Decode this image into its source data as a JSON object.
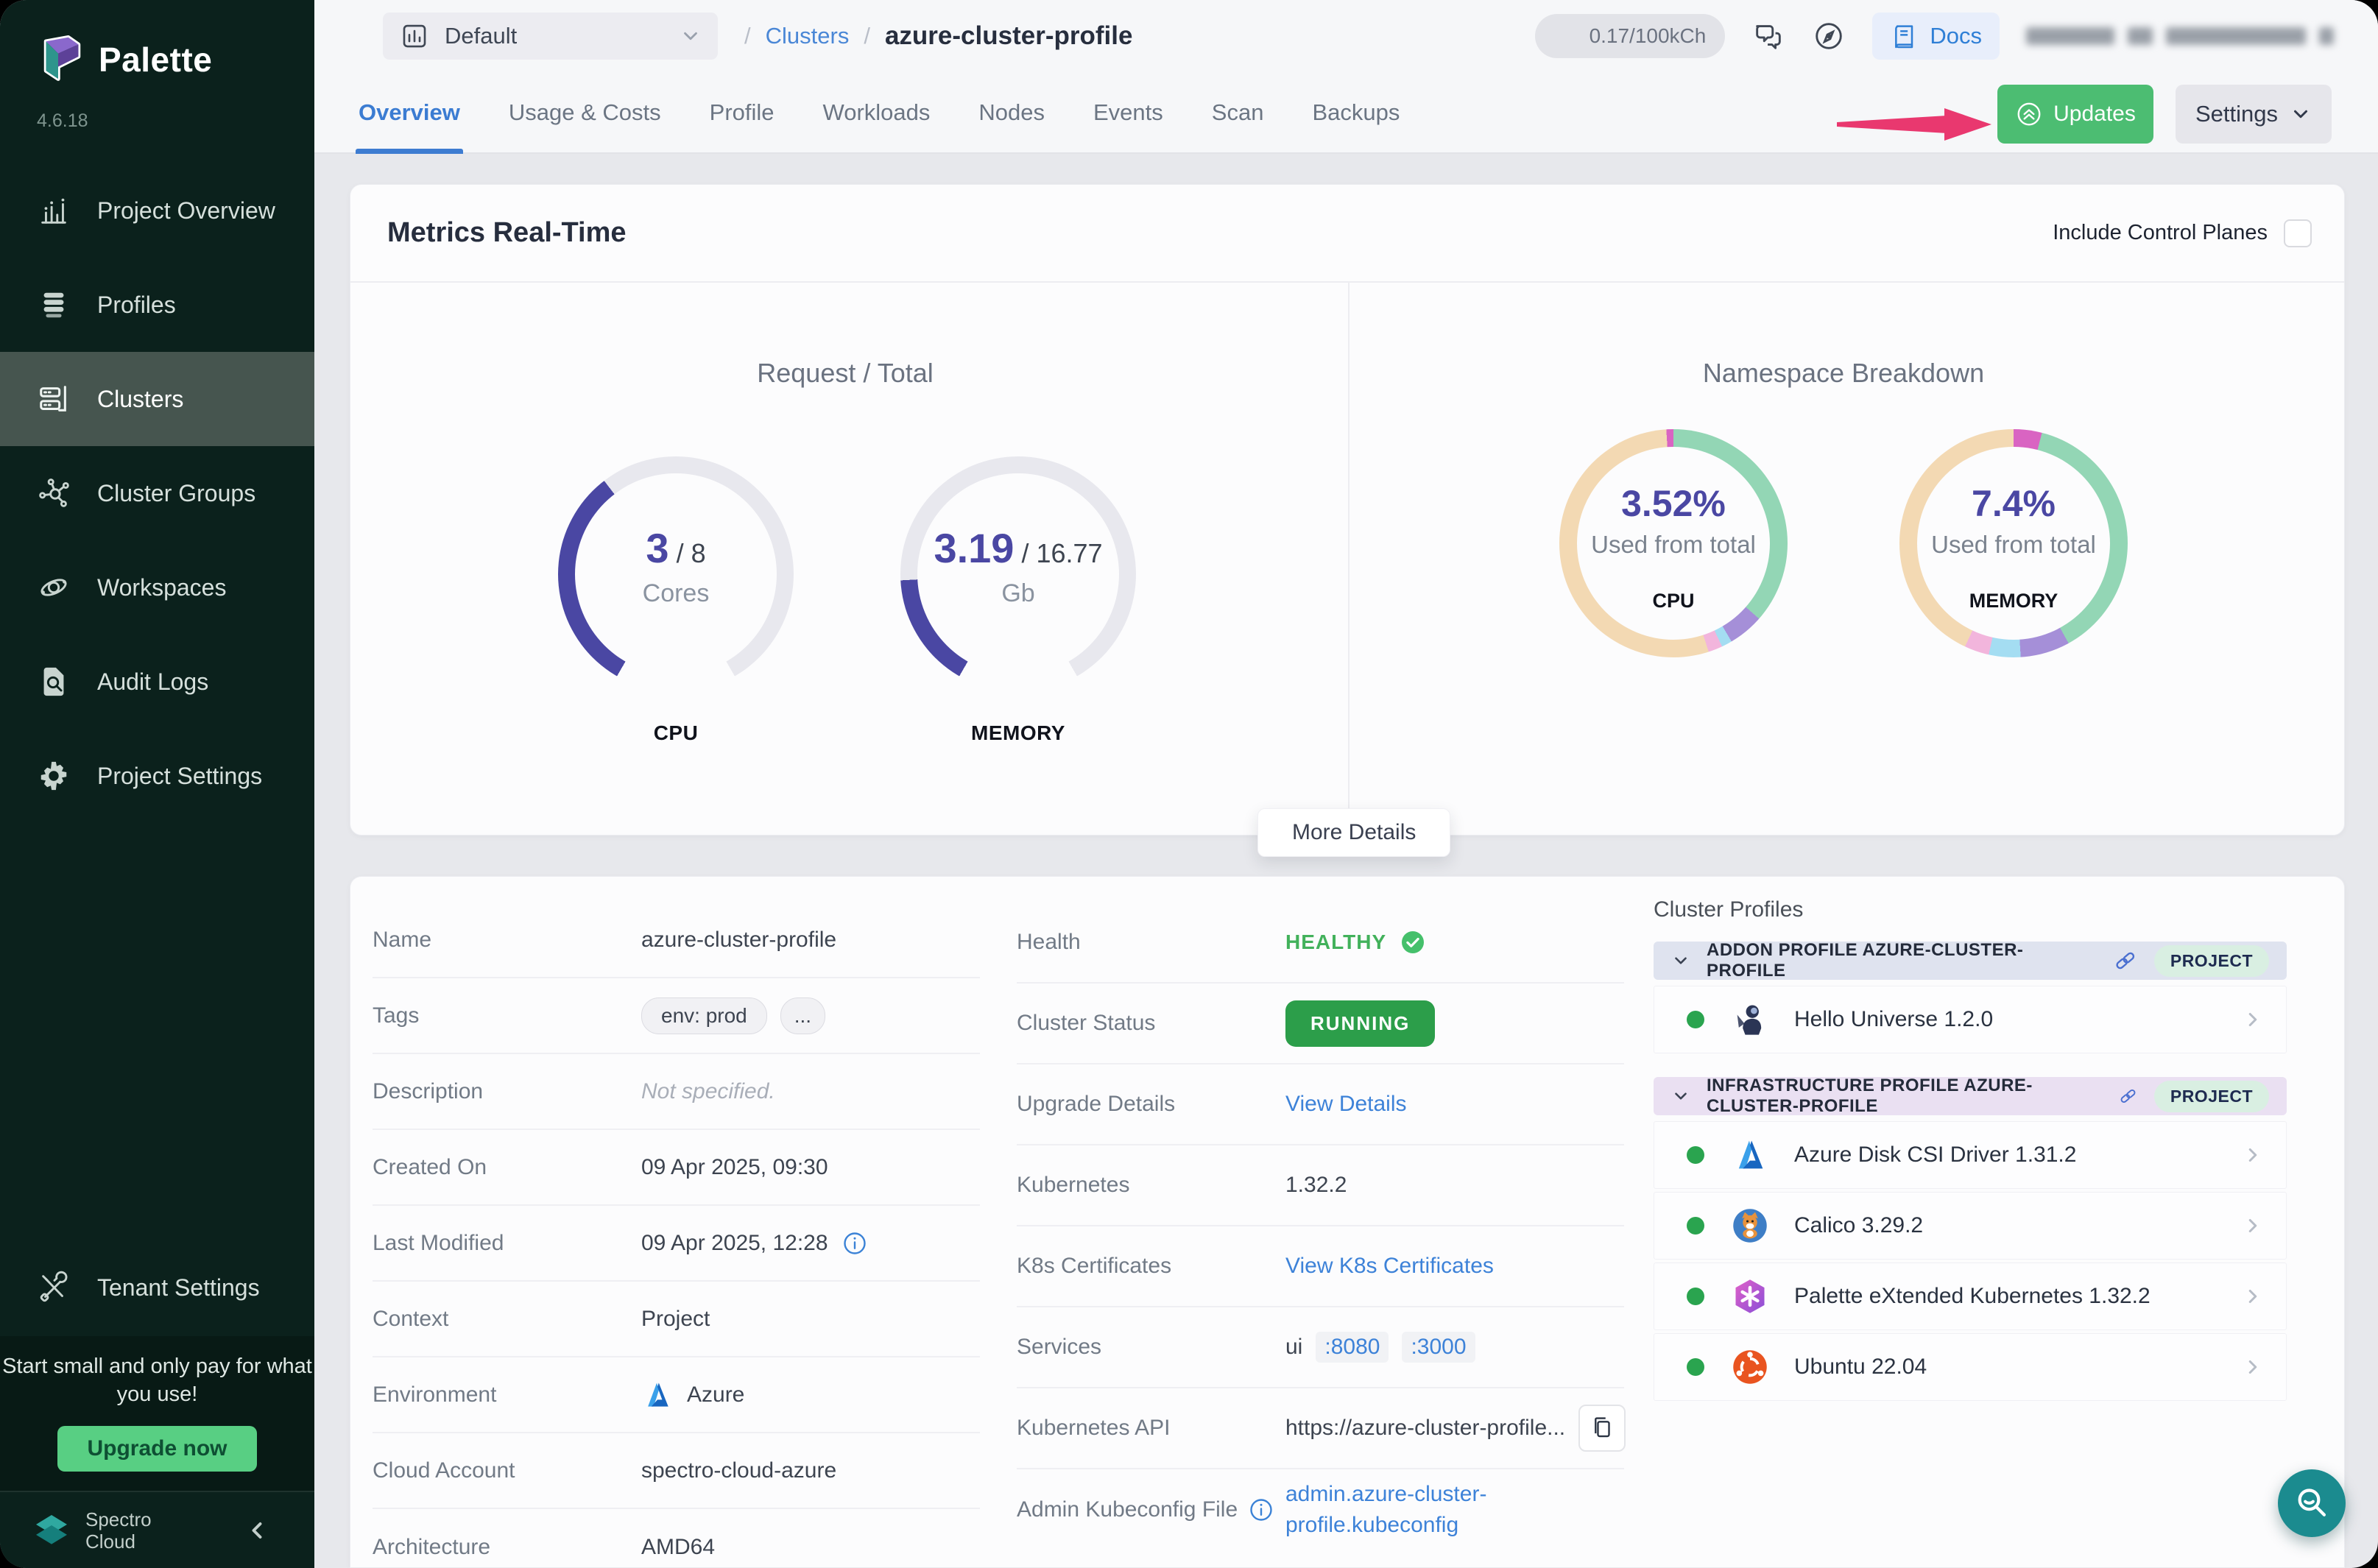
{
  "app": {
    "brand": "Palette",
    "version": "4.6.18",
    "footer_brand": "Spectro Cloud"
  },
  "colors": {
    "accent_indigo": "#4a47a3",
    "gauge_track": "#e8e8ee",
    "link_blue": "#3d82d8",
    "running_green": "#2c9e4a",
    "healthy_green": "#42b15b",
    "updates_green": "#4cbd72",
    "upgrade_green": "#58cf83",
    "arrow_pink": "#e9386f",
    "sidebar_bg": "#0b211c"
  },
  "sidebar": {
    "items": [
      {
        "icon": "project-overview",
        "label": "Project Overview",
        "active": false
      },
      {
        "icon": "profiles",
        "label": "Profiles",
        "active": false
      },
      {
        "icon": "clusters",
        "label": "Clusters",
        "active": true
      },
      {
        "icon": "cluster-groups",
        "label": "Cluster Groups",
        "active": false
      },
      {
        "icon": "workspaces",
        "label": "Workspaces",
        "active": false
      },
      {
        "icon": "audit-logs",
        "label": "Audit Logs",
        "active": false
      },
      {
        "icon": "project-settings",
        "label": "Project Settings",
        "active": false
      }
    ],
    "tenant_settings_label": "Tenant Settings",
    "promo": {
      "text": "Start small and only pay for what you use!",
      "button": "Upgrade now"
    }
  },
  "topbar": {
    "project_selector": "Default",
    "breadcrumb": {
      "sep": "/",
      "section": "Clusters",
      "page": "azure-cluster-profile"
    },
    "usage_pill": "0.17/100kCh",
    "docs_label": "Docs"
  },
  "tabs": {
    "items": [
      "Overview",
      "Usage & Costs",
      "Profile",
      "Workloads",
      "Nodes",
      "Events",
      "Scan",
      "Backups"
    ],
    "active": "Overview",
    "updates_button": "Updates",
    "settings_button": "Settings"
  },
  "metrics": {
    "title": "Metrics Real-Time",
    "include_control_planes": "Include Control Planes",
    "request_total": {
      "title": "Request / Total",
      "gauges": [
        {
          "name": "CPU",
          "value": "3",
          "total": "8",
          "unit": "Cores",
          "fraction": 0.375
        },
        {
          "name": "MEMORY",
          "value": "3.19",
          "total": "16.77",
          "unit": "Gb",
          "fraction": 0.19
        }
      ]
    },
    "namespace_breakdown": {
      "title": "Namespace Breakdown",
      "donuts": [
        {
          "name": "CPU",
          "percent": "3.52%",
          "caption": "Used from total",
          "segments": [
            {
              "color": "#93d6b5",
              "pct": 36.5
            },
            {
              "color": "#a58fd8",
              "pct": 5
            },
            {
              "color": "#a4ddf2",
              "pct": 1.5
            },
            {
              "color": "#f2b5dc",
              "pct": 2
            },
            {
              "color": "#f3d9b3",
              "pct": 54
            },
            {
              "color": "#d964c2",
              "pct": 1
            }
          ]
        },
        {
          "name": "MEMORY",
          "percent": "7.4%",
          "caption": "Used from total",
          "segments": [
            {
              "color": "#d964c2",
              "pct": 4
            },
            {
              "color": "#93d6b5",
              "pct": 38
            },
            {
              "color": "#a58fd8",
              "pct": 7
            },
            {
              "color": "#a4ddf2",
              "pct": 4.5
            },
            {
              "color": "#f2b5dc",
              "pct": 3.5
            },
            {
              "color": "#f3d9b3",
              "pct": 43
            }
          ]
        }
      ]
    },
    "more_details": "More Details"
  },
  "details": {
    "left_rows": [
      {
        "label": "Name",
        "type": "text",
        "value": "azure-cluster-profile"
      },
      {
        "label": "Tags",
        "type": "tags",
        "tags": [
          "env: prod",
          "..."
        ]
      },
      {
        "label": "Description",
        "type": "muted",
        "value": "Not specified."
      },
      {
        "label": "Created On",
        "type": "text",
        "value": "09 Apr 2025, 09:30"
      },
      {
        "label": "Last Modified",
        "type": "text-info",
        "value": "09 Apr 2025, 12:28"
      },
      {
        "label": "Context",
        "type": "text",
        "value": "Project"
      },
      {
        "label": "Environment",
        "type": "azure",
        "value": "Azure"
      },
      {
        "label": "Cloud Account",
        "type": "text",
        "value": "spectro-cloud-azure"
      },
      {
        "label": "Architecture",
        "type": "text",
        "value": "AMD64"
      }
    ],
    "middle_rows": [
      {
        "label": "Health",
        "type": "health",
        "value": "HEALTHY"
      },
      {
        "label": "Cluster Status",
        "type": "status",
        "value": "RUNNING"
      },
      {
        "label": "Upgrade Details",
        "type": "link",
        "value": "View Details"
      },
      {
        "label": "Kubernetes",
        "type": "text",
        "value": "1.32.2"
      },
      {
        "label": "K8s Certificates",
        "type": "link",
        "value": "View K8s Certificates"
      },
      {
        "label": "Services",
        "type": "services",
        "prefix": "ui",
        "ports": [
          ":8080",
          ":3000"
        ]
      },
      {
        "label": "Kubernetes API",
        "type": "api",
        "value": "https://azure-cluster-profile..."
      },
      {
        "label": "Admin Kubeconfig File",
        "type": "link-info",
        "label_info": true,
        "value": "admin.azure-cluster-profile.kubeconfig"
      }
    ]
  },
  "cluster_profiles": {
    "title": "Cluster Profiles",
    "sections": [
      {
        "header": "ADDON PROFILE AZURE-CLUSTER-PROFILE",
        "badge": "PROJECT",
        "tint": "blue",
        "items": [
          {
            "icon": "hello-universe",
            "label": "Hello Universe 1.2.0"
          }
        ]
      },
      {
        "header": "INFRASTRUCTURE PROFILE AZURE-CLUSTER-PROFILE",
        "badge": "PROJECT",
        "tint": "purple",
        "items": [
          {
            "icon": "azure-disk",
            "label": "Azure Disk CSI Driver 1.31.2"
          },
          {
            "icon": "calico",
            "label": "Calico 3.29.2"
          },
          {
            "icon": "pxk",
            "label": "Palette eXtended Kubernetes 1.32.2"
          },
          {
            "icon": "ubuntu",
            "label": "Ubuntu 22.04"
          }
        ]
      }
    ]
  }
}
